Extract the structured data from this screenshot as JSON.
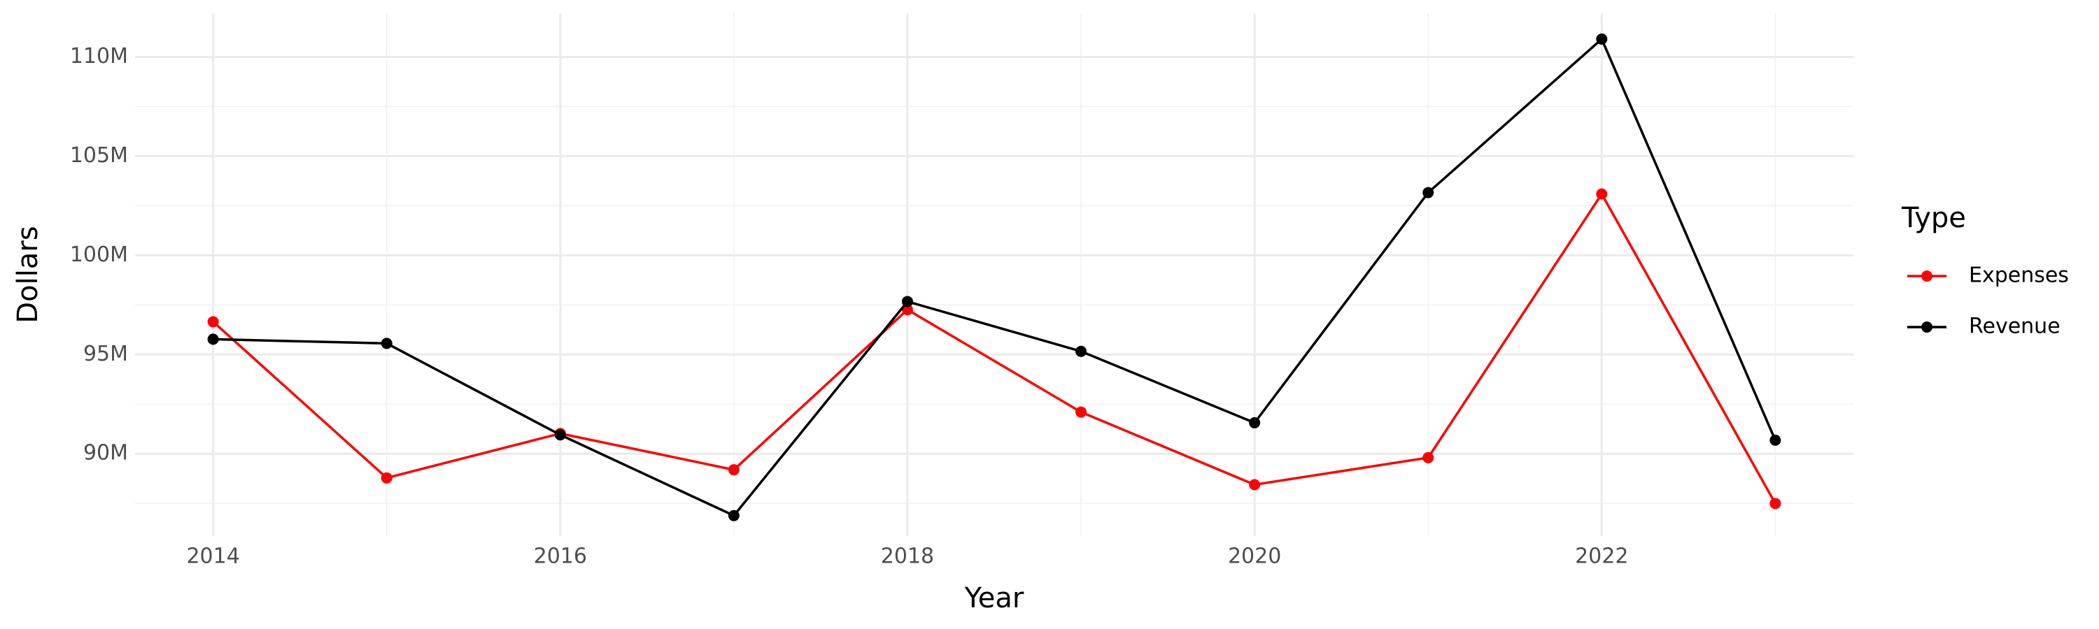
{
  "chart_data": {
    "type": "line",
    "x_label": "Year",
    "y_label": "Dollars",
    "legend_title": "Type",
    "x": [
      2014,
      2015,
      2016,
      2017,
      2018,
      2019,
      2020,
      2021,
      2022,
      2023
    ],
    "series": [
      {
        "name": "Expenses",
        "color": "#ff0000",
        "values": [
          96650000,
          88780000,
          91020000,
          89190000,
          97260000,
          92100000,
          88440000,
          89800000,
          103090000,
          87490000
        ]
      },
      {
        "name": "Revenue",
        "color": "#000000",
        "values": [
          95770000,
          95560000,
          90950000,
          86880000,
          97670000,
          95160000,
          91560000,
          103160000,
          110900000,
          90680000
        ]
      }
    ],
    "xlim": [
      2013.55,
      2023.45
    ],
    "xticks": [
      2014,
      2016,
      2018,
      2020,
      2022
    ],
    "ylim": [
      85850000,
      112200000
    ],
    "yticks": [
      {
        "value": 90000000,
        "label": "90M"
      },
      {
        "value": 95000000,
        "label": "95M"
      },
      {
        "value": 100000000,
        "label": "100M"
      },
      {
        "value": 105000000,
        "label": "105M"
      },
      {
        "value": 110000000,
        "label": "110M"
      }
    ],
    "grid": true,
    "legend_position": "right"
  }
}
